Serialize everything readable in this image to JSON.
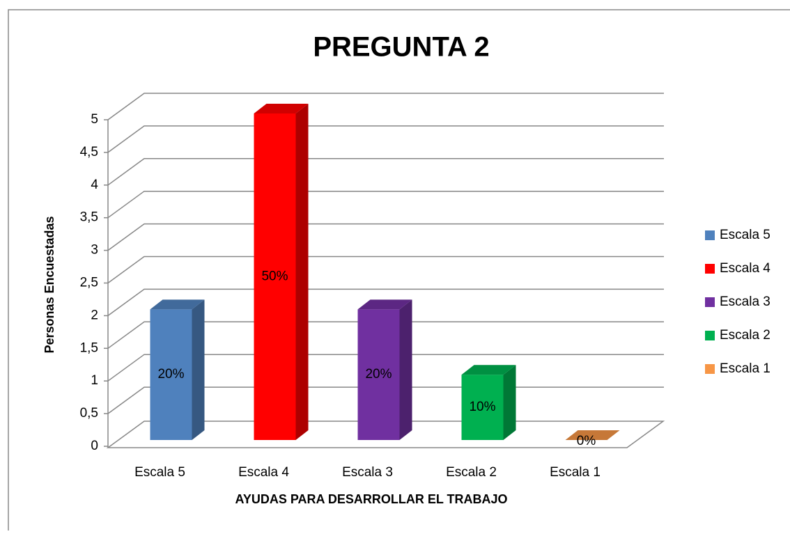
{
  "chart_data": {
    "type": "bar3d",
    "title": "PREGUNTA 2",
    "x_label": "AYUDAS PARA DESARROLLAR EL TRABAJO",
    "y_label": "Personas Encuestadas",
    "categories": [
      "Escala 5",
      "Escala 4",
      "Escala 3",
      "Escala 2",
      "Escala 1"
    ],
    "values": [
      2,
      5,
      2,
      1,
      0
    ],
    "bar_labels": [
      "20%",
      "50%",
      "20%",
      "10%",
      "0%"
    ],
    "colors": [
      "#4f81bd",
      "#ff0000",
      "#7030a0",
      "#00b050",
      "#f79646"
    ],
    "ylim": [
      0,
      5
    ],
    "yticks": [
      0,
      {
        "value": 0.5,
        "label": "0,5"
      },
      1,
      {
        "value": 1.5,
        "label": "1,5"
      },
      2,
      {
        "value": 2.5,
        "label": "2,5"
      },
      3,
      {
        "value": 3.5,
        "label": "3,5"
      },
      4,
      {
        "value": 4.5,
        "label": "4,5"
      },
      5
    ],
    "grid": true,
    "legend": "right"
  }
}
